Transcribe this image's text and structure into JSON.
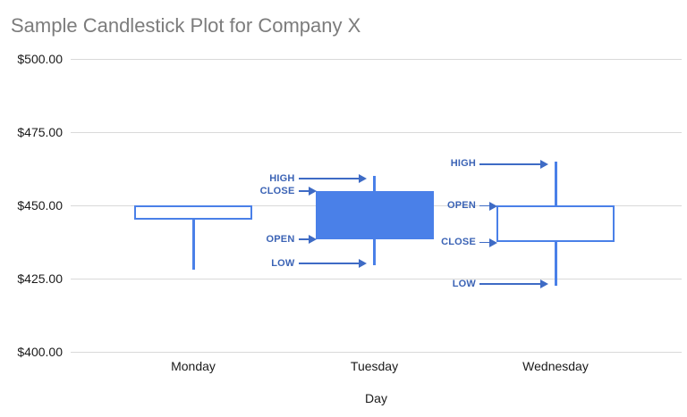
{
  "chart_data": {
    "type": "candlestick",
    "title": "Sample Candlestick Plot for Company X",
    "xlabel": "Day",
    "ylabel": "",
    "ylim": [
      400,
      500
    ],
    "grid": true,
    "y_ticks": [
      {
        "label": "$500.00",
        "value": 500
      },
      {
        "label": "$475.00",
        "value": 475
      },
      {
        "label": "$450.00",
        "value": 450
      },
      {
        "label": "$425.00",
        "value": 425
      },
      {
        "label": "$400.00",
        "value": 400
      }
    ],
    "categories": [
      "Monday",
      "Tuesday",
      "Wednesday"
    ],
    "candles": [
      {
        "day": "Monday",
        "low": 428,
        "open": 445,
        "close": 450,
        "high": 450,
        "style": "hollow"
      },
      {
        "day": "Tuesday",
        "low": 429.5,
        "open": 438.5,
        "close": 455,
        "high": 460,
        "style": "filled"
      },
      {
        "day": "Wednesday",
        "low": 422.5,
        "open": 450,
        "close": 437.5,
        "high": 465,
        "style": "hollow"
      }
    ],
    "annotations": [
      {
        "candle_index": 1,
        "points": [
          {
            "field": "high",
            "label": "HIGH"
          },
          {
            "field": "close",
            "label": "CLOSE"
          },
          {
            "field": "open",
            "label": "OPEN"
          },
          {
            "field": "low",
            "label": "LOW"
          }
        ]
      },
      {
        "candle_index": 2,
        "points": [
          {
            "field": "high",
            "label": "HIGH"
          },
          {
            "field": "open",
            "label": "OPEN"
          },
          {
            "field": "close",
            "label": "CLOSE"
          },
          {
            "field": "low",
            "label": "LOW"
          }
        ]
      }
    ]
  },
  "colors": {
    "candle_blue": "#4a80e8",
    "annotation_text": "#3b63b5",
    "arrow": "#3e6bc5",
    "gridline": "#d9d9d9",
    "title_gray": "#7c7c7c",
    "axis_text": "#1a1a1a",
    "background": "#ffffff"
  }
}
